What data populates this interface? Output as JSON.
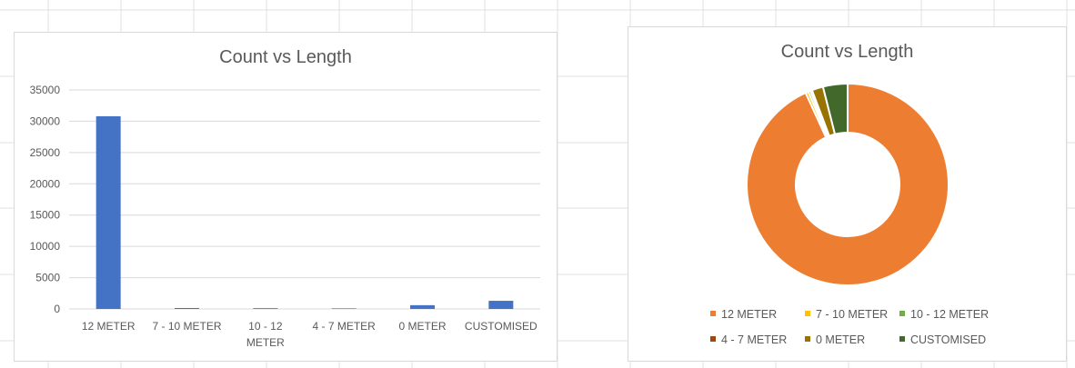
{
  "chart_data": [
    {
      "type": "bar",
      "title": "Count vs Length",
      "categories": [
        "12 METER",
        "7 - 10 METER",
        "10 - 12 METER",
        "4 - 7 METER",
        "0 METER",
        "CUSTOMISED"
      ],
      "category_lines": [
        [
          "12 METER"
        ],
        [
          "7 - 10 METER"
        ],
        [
          "10 - 12",
          "METER"
        ],
        [
          "4 - 7 METER"
        ],
        [
          "0 METER"
        ],
        [
          "CUSTOMISED"
        ]
      ],
      "values": [
        30800,
        150,
        120,
        90,
        600,
        1300
      ],
      "ylim": [
        0,
        35000
      ],
      "yticks": [
        "0",
        "5000",
        "10000",
        "15000",
        "20000",
        "25000",
        "30000",
        "35000"
      ],
      "grid": true,
      "xlabel": "",
      "ylabel": "",
      "bar_color": "#4472C4"
    },
    {
      "type": "pie",
      "title": "Count vs Length",
      "labels": [
        "12 METER",
        "7 - 10 METER",
        "10 - 12 METER",
        "4 - 7 METER",
        "0 METER",
        "CUSTOMISED"
      ],
      "values": [
        30800,
        150,
        120,
        90,
        600,
        1300
      ],
      "colors": [
        "#ED7D31",
        "#FFC000",
        "#70AD47",
        "#9E480E",
        "#997300",
        "#43682B"
      ],
      "legend_position": "bottom"
    }
  ]
}
